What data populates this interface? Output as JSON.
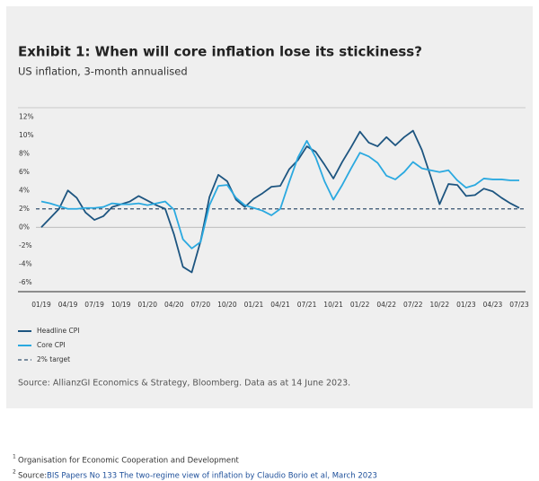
{
  "chart_data": {
    "type": "line",
    "title": "Exhibit 1: When will core inflation lose its stickiness?",
    "subtitle": "US inflation, 3-month annualised",
    "categories": [
      "01/19",
      null,
      null,
      "04/19",
      null,
      null,
      "07/19",
      null,
      null,
      "10/19",
      null,
      null,
      "01/20",
      null,
      null,
      "04/20",
      null,
      null,
      "07/20",
      null,
      null,
      "10/20",
      null,
      null,
      "01/21",
      null,
      null,
      "04/21",
      null,
      null,
      "07/21",
      null,
      null,
      "10/21",
      null,
      null,
      "01/22",
      null,
      null,
      "04/22",
      null,
      null,
      "07/22",
      null,
      null,
      "10/22",
      null,
      null,
      "01/23",
      null,
      null,
      "04/23",
      null,
      null,
      "07/23"
    ],
    "series": [
      {
        "name": "Headline CPI",
        "color": "#1d5580",
        "values": [
          0,
          1.0,
          2.0,
          4.0,
          3.2,
          1.6,
          0.8,
          1.2,
          2.2,
          2.5,
          2.8,
          3.4,
          2.9,
          2.4,
          2.0,
          -0.8,
          -4.3,
          -4.9,
          -1.5,
          3.3,
          5.7,
          5.0,
          3.0,
          2.2,
          3.1,
          3.7,
          4.4,
          4.5,
          6.3,
          7.3,
          8.8,
          8.2,
          6.8,
          5.3,
          7.1,
          8.7,
          10.4,
          9.2,
          8.8,
          9.8,
          8.9,
          9.8,
          10.5,
          8.4,
          5.5,
          2.5,
          4.7,
          4.6,
          3.4,
          3.5,
          4.2,
          3.9,
          3.2,
          2.6,
          2.1
        ]
      },
      {
        "name": "Core CPI",
        "color": "#2aa9e0",
        "values": [
          2.8,
          2.6,
          2.3,
          2.0,
          2.0,
          2.1,
          2.1,
          2.2,
          2.6,
          2.5,
          2.5,
          2.6,
          2.4,
          2.6,
          2.8,
          1.9,
          -1.3,
          -2.3,
          -1.6,
          2.4,
          4.5,
          4.6,
          3.2,
          2.4,
          2.1,
          1.8,
          1.3,
          2.0,
          4.9,
          7.6,
          9.4,
          7.6,
          5.0,
          3.0,
          4.6,
          6.4,
          8.1,
          7.7,
          7.0,
          5.6,
          5.2,
          6.0,
          7.1,
          6.4,
          6.2,
          6.0,
          6.2,
          5.1,
          4.3,
          4.6,
          5.3,
          5.2,
          5.2,
          5.1,
          5.1
        ]
      }
    ],
    "reference_line": {
      "name": "2% target",
      "value": 2,
      "color": "#34506e"
    },
    "ylim": [
      -7,
      13
    ],
    "yticks": [
      {
        "value": -6,
        "label": "-6%"
      },
      {
        "value": -4,
        "label": "-4%"
      },
      {
        "value": -2,
        "label": "-2%"
      },
      {
        "value": 0,
        "label": "0%"
      },
      {
        "value": 2,
        "label": "2%"
      },
      {
        "value": 4,
        "label": "4%"
      },
      {
        "value": 6,
        "label": "6%"
      },
      {
        "value": 8,
        "label": "8%"
      },
      {
        "value": 10,
        "label": "10%"
      },
      {
        "value": 12,
        "label": "12%"
      }
    ],
    "grid": false,
    "source": "Source: AllianzGI Economics & Strategy, Bloomberg. Data as at 14 June 2023."
  },
  "footnotes": [
    {
      "number": "1",
      "text": "Organisation for Economic Cooperation and Development"
    },
    {
      "number": "2",
      "text": "Source:",
      "link": "BIS Papers No 133 The two-regime view of inflation by Claudio Borio et al, March 2023"
    }
  ]
}
